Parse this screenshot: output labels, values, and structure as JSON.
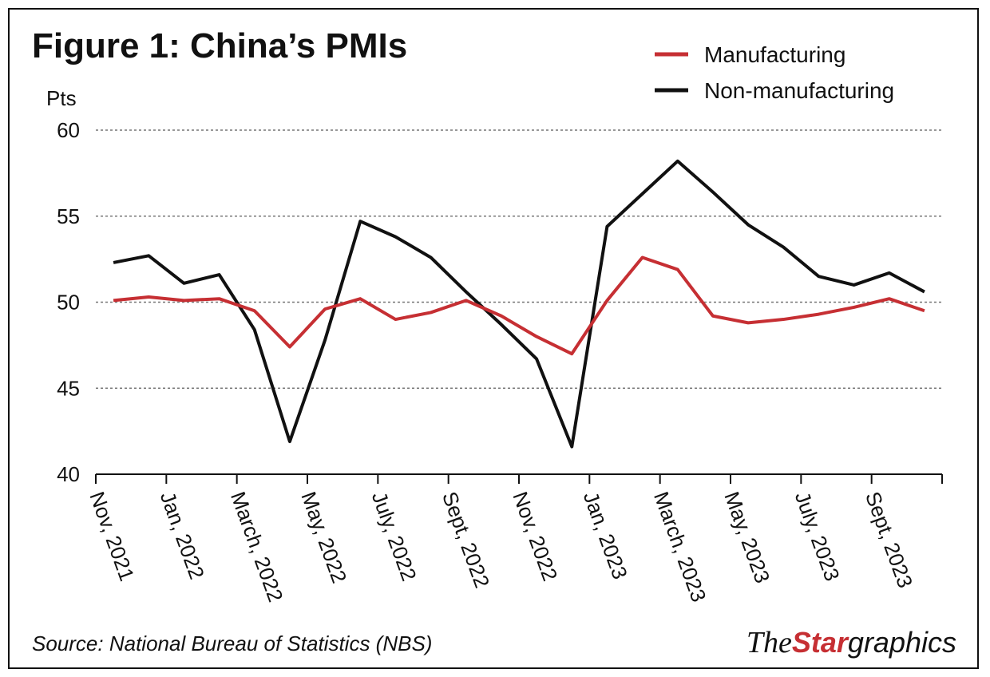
{
  "chart_data": {
    "type": "line",
    "title": "Figure 1: China’s PMIs",
    "y_label": "Pts",
    "categories": [
      "Nov, 2021",
      null,
      "Jan, 2022",
      null,
      "March, 2022",
      null,
      "May, 2022",
      null,
      "July, 2022",
      null,
      "Sept, 2022",
      null,
      "Nov, 2022",
      null,
      "Jan, 2023",
      null,
      "March, 2023",
      null,
      "May, 2023",
      null,
      "July, 2023",
      null,
      "Sept, 2023",
      null
    ],
    "series": [
      {
        "name": "Manufacturing",
        "color": "#c62f33",
        "values": [
          50.1,
          50.3,
          50.1,
          50.2,
          49.5,
          47.4,
          49.6,
          50.2,
          49.0,
          49.4,
          50.1,
          49.2,
          48.0,
          47.0,
          50.1,
          52.6,
          51.9,
          49.2,
          48.8,
          49.0,
          49.3,
          49.7,
          50.2,
          49.5
        ]
      },
      {
        "name": "Non-manufacturing",
        "color": "#111111",
        "values": [
          52.3,
          52.7,
          51.1,
          51.6,
          48.4,
          41.9,
          47.8,
          54.7,
          53.8,
          52.6,
          50.6,
          48.7,
          46.7,
          41.6,
          54.4,
          56.3,
          58.2,
          56.4,
          54.5,
          53.2,
          51.5,
          51.0,
          51.7,
          50.6
        ]
      }
    ],
    "ylim": [
      40,
      60
    ],
    "yticks": [
      40,
      45,
      50,
      55,
      60
    ],
    "grid": true,
    "legend": "top-right",
    "source": "Source: National Bureau of Statistics (NBS)",
    "logo": {
      "the": "The",
      "star": "Star",
      "graphics": "graphics"
    }
  }
}
